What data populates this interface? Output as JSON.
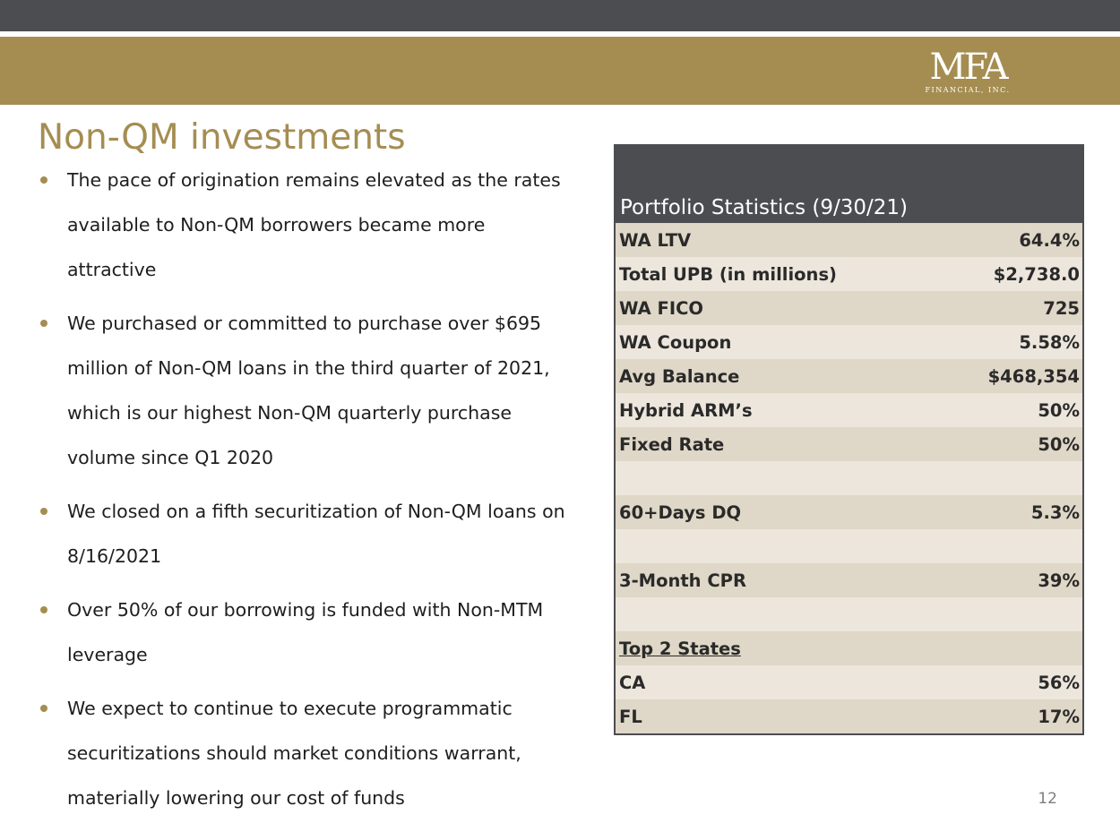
{
  "header": {
    "logo_text": "MFA",
    "logo_subtext": "FINANCIAL, INC.",
    "colors": {
      "dark": "#4b4d51",
      "gold": "#a58d52"
    }
  },
  "title": "Non-QM investments",
  "bullets": [
    "The pace of origination remains elevated as the rates available to Non-QM borrowers became more attractive",
    "We purchased or committed to purchase over $695 million of Non-QM loans in the third quarter of 2021, which is our highest Non-QM quarterly purchase volume since Q1 2020",
    "We closed on a fifth securitization of Non-QM loans on 8/16/2021",
    "Over 50% of our borrowing is funded with Non-MTM leverage",
    "We expect to continue to execute programmatic securitizations should market conditions warrant, materially lowering our cost of funds"
  ],
  "table": {
    "header": "Portfolio Statistics (9/30/21)",
    "rows": [
      {
        "label": "WA LTV",
        "value": "64.4%"
      },
      {
        "label": "Total UPB (in millions)",
        "value": "$2,738.0"
      },
      {
        "label": "WA FICO",
        "value": "725"
      },
      {
        "label": "WA Coupon",
        "value": "5.58%"
      },
      {
        "label": "Avg Balance",
        "value": "$468,354"
      },
      {
        "label": "Hybrid ARM’s",
        "value": "50%"
      },
      {
        "label": "Fixed Rate",
        "value": "50%"
      },
      {
        "label": "",
        "value": ""
      },
      {
        "label": "60+Days DQ",
        "value": "5.3%"
      },
      {
        "label": "",
        "value": ""
      },
      {
        "label": "3-Month CPR",
        "value": "39%"
      },
      {
        "label": "",
        "value": ""
      },
      {
        "label": "Top 2 States",
        "value": ""
      },
      {
        "label": "CA",
        "value": "56%"
      },
      {
        "label": "FL",
        "value": "17%"
      }
    ]
  },
  "page_number": "12"
}
